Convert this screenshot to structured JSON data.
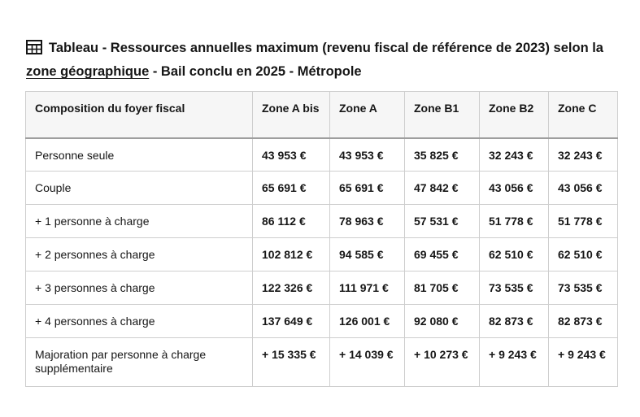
{
  "caption": {
    "icon": "table-icon",
    "text_before_link": "Tableau - Ressources annuelles maximum (revenu fiscal de référence de 2023) selon la ",
    "link_text": "zone géographique",
    "text_after_link": " - Bail conclu en 2025 - Métropole"
  },
  "table": {
    "headers": [
      "Composition du foyer fiscal",
      "Zone A bis",
      "Zone A",
      "Zone B1",
      "Zone B2",
      "Zone C"
    ],
    "rows": [
      [
        "Personne seule",
        "43 953 €",
        "43 953 €",
        "35 825 €",
        "32 243 €",
        "32 243 €"
      ],
      [
        "Couple",
        "65 691 €",
        "65 691 €",
        "47 842 €",
        "43 056 €",
        "43 056 €"
      ],
      [
        "+ 1 personne à charge",
        "86 112 €",
        "78 963 €",
        "57 531 €",
        "51 778 €",
        "51 778 €"
      ],
      [
        "+ 2 personnes à charge",
        "102 812 €",
        "94 585 €",
        "69 455 €",
        "62 510 €",
        "62 510 €"
      ],
      [
        "+ 3 personnes à charge",
        "122 326 €",
        "111 971 €",
        "81 705 €",
        "73 535 €",
        "73 535 €"
      ],
      [
        "+ 4 personnes à charge",
        "137 649 €",
        "126 001 €",
        "92 080 €",
        "82 873 €",
        "82 873 €"
      ],
      [
        "Majoration par personne à charge supplémentaire",
        "+ 15 335 €",
        "+ 14 039 €",
        "+ 10 273 €",
        "+ 9 243 €",
        "+ 9 243 €"
      ]
    ]
  }
}
